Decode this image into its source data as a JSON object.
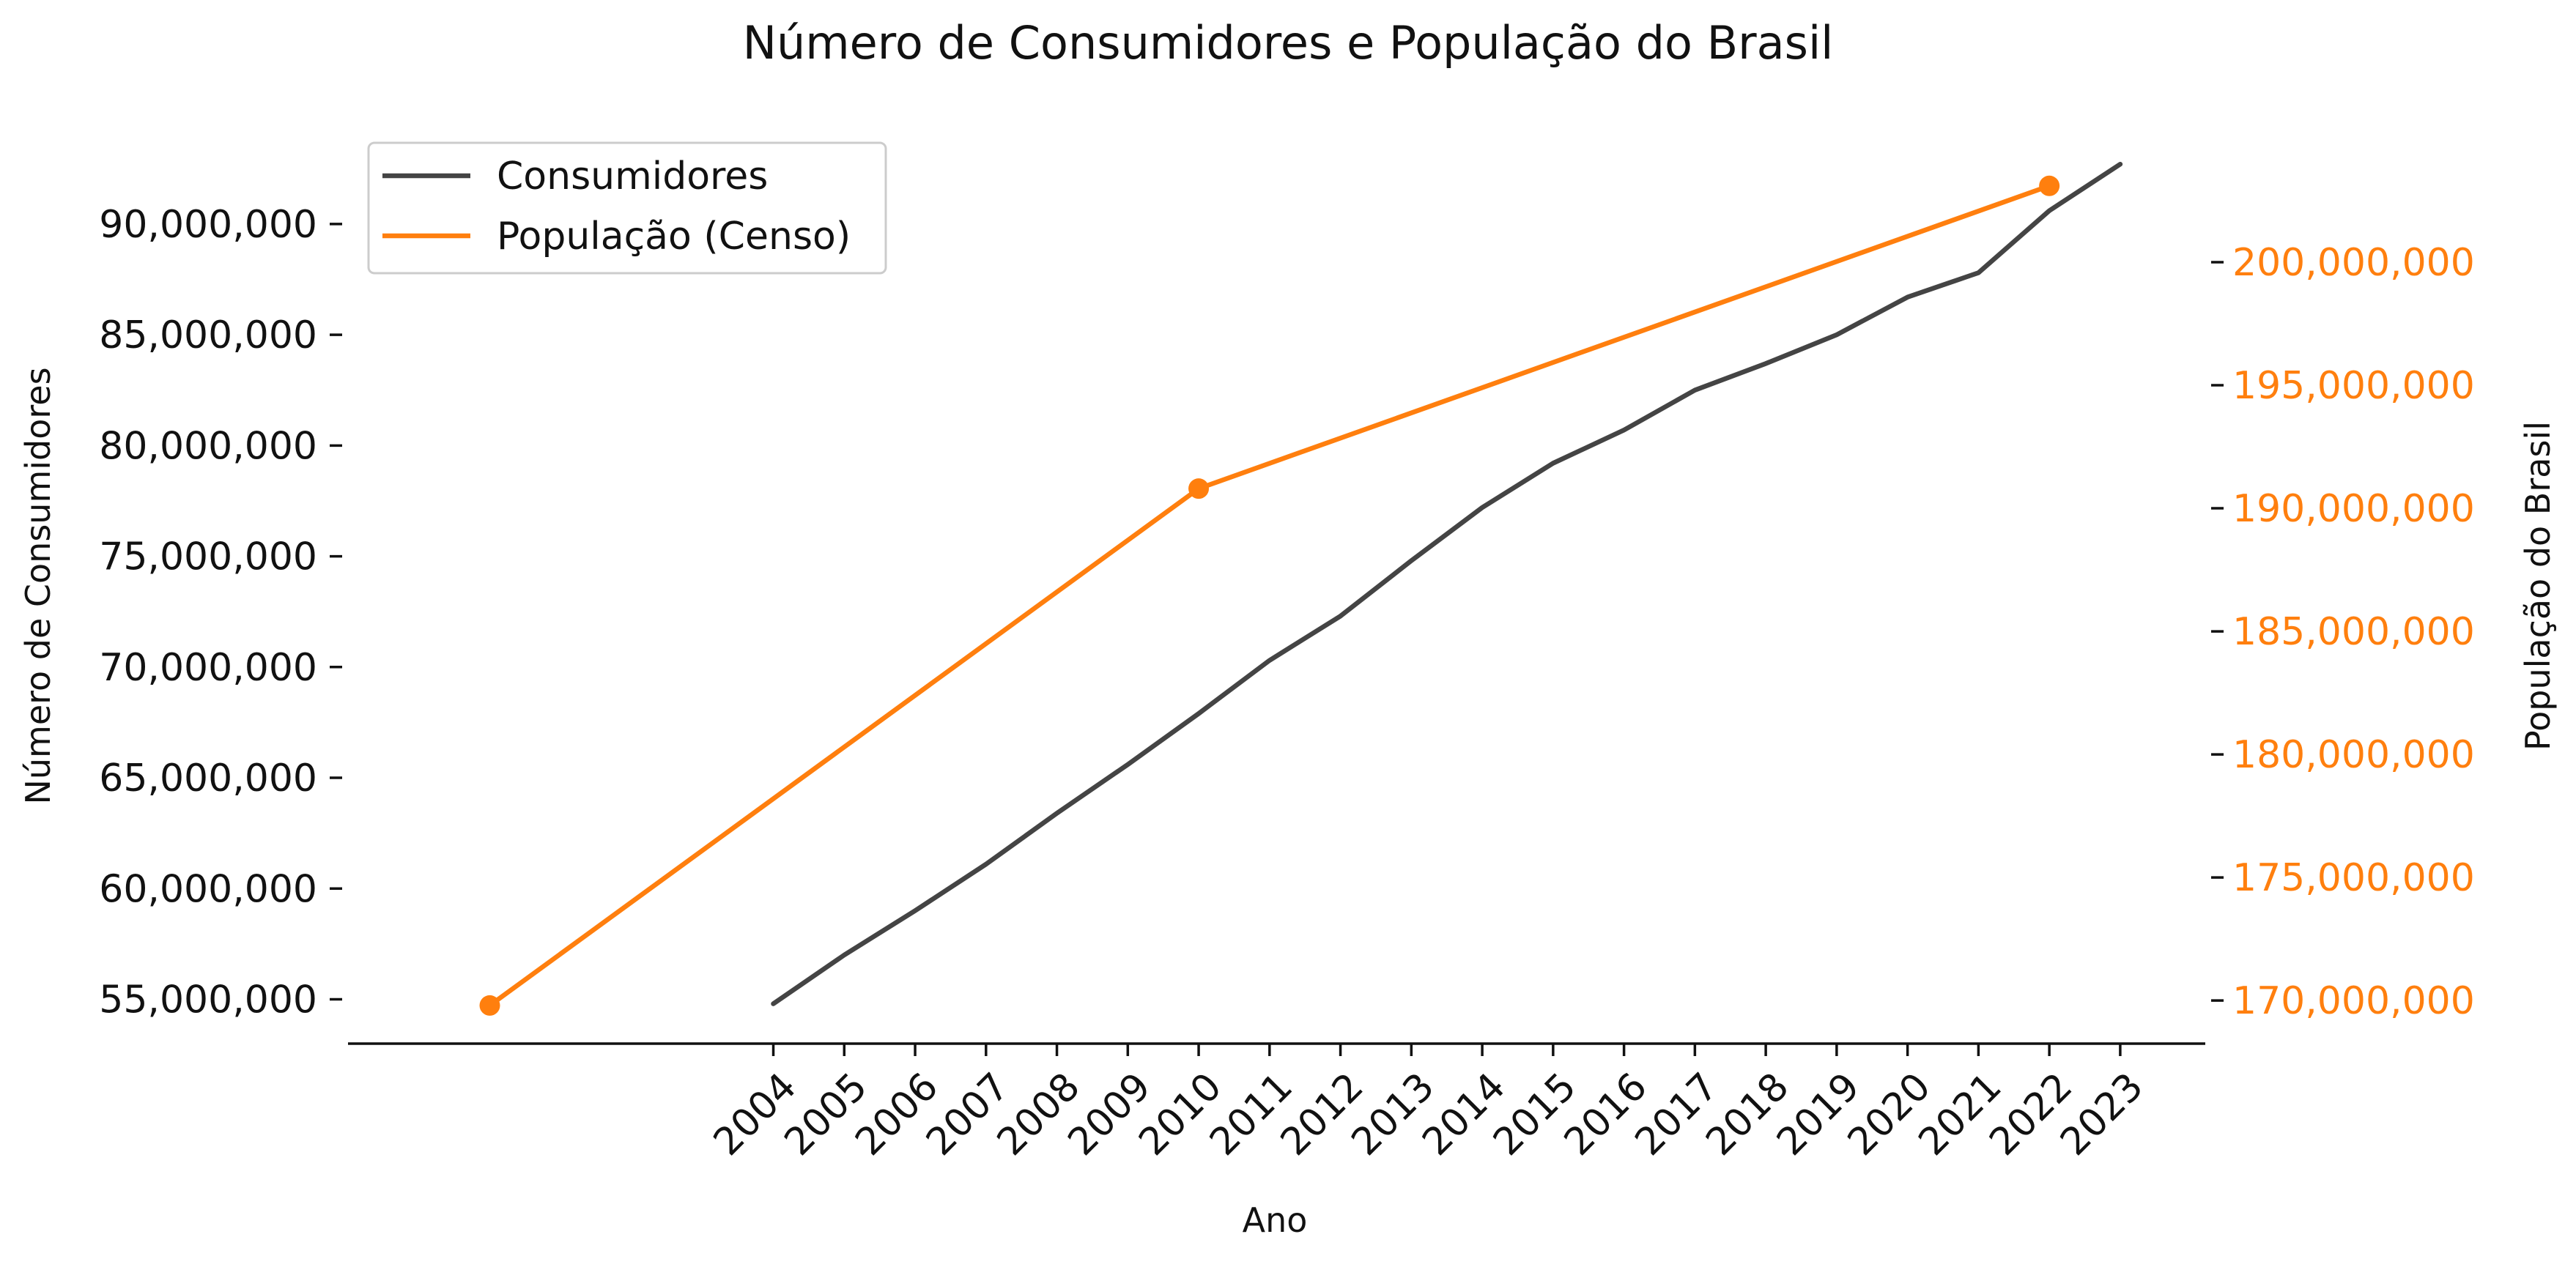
{
  "chart_data": {
    "type": "line",
    "title": "Número de Consumidores e População do Brasil",
    "xlabel": "Ano",
    "ylabel_left": "Número de Consumidores",
    "ylabel_right": "População do Brasil",
    "x_ticks": [
      2004,
      2005,
      2006,
      2007,
      2008,
      2009,
      2010,
      2011,
      2012,
      2013,
      2014,
      2015,
      2016,
      2017,
      2018,
      2019,
      2020,
      2021,
      2022,
      2023
    ],
    "x_range": [
      1998,
      2024.2
    ],
    "y_left_ticks": [
      55000000,
      60000000,
      65000000,
      70000000,
      75000000,
      80000000,
      85000000,
      90000000
    ],
    "y_left_tick_labels": [
      "55,000,000",
      "60,000,000",
      "65,000,000",
      "70,000,000",
      "75,000,000",
      "80,000,000",
      "85,000,000",
      "90,000,000"
    ],
    "y_left_range": [
      53000000,
      93500000
    ],
    "y_right_ticks": [
      170000000,
      175000000,
      180000000,
      185000000,
      190000000,
      195000000,
      200000000
    ],
    "y_right_tick_labels": [
      "170,000,000",
      "175,000,000",
      "180,000,000",
      "185,000,000",
      "190,000,000",
      "195,000,000",
      "200,000,000"
    ],
    "y_right_range": [
      168250000,
      204700000
    ],
    "grid": false,
    "legend_position": "top-left",
    "series": [
      {
        "name": "Consumidores",
        "axis": "left",
        "color": "#444444",
        "marker": "none",
        "x": [
          2004,
          2005,
          2006,
          2007,
          2008,
          2009,
          2010,
          2011,
          2012,
          2013,
          2014,
          2015,
          2016,
          2017,
          2018,
          2019,
          2020,
          2021,
          2022,
          2023
        ],
        "values": [
          54800000,
          57000000,
          59000000,
          61100000,
          63400000,
          65600000,
          67900000,
          70300000,
          72300000,
          74800000,
          77200000,
          79200000,
          80700000,
          82500000,
          83700000,
          85000000,
          86700000,
          87800000,
          90600000,
          92700000
        ]
      },
      {
        "name": "População (Censo)",
        "axis": "right",
        "color": "#ff7f0e",
        "marker": "circle",
        "x": [
          2000,
          2010,
          2022
        ],
        "values": [
          169800000,
          190800000,
          203100000
        ]
      }
    ]
  }
}
